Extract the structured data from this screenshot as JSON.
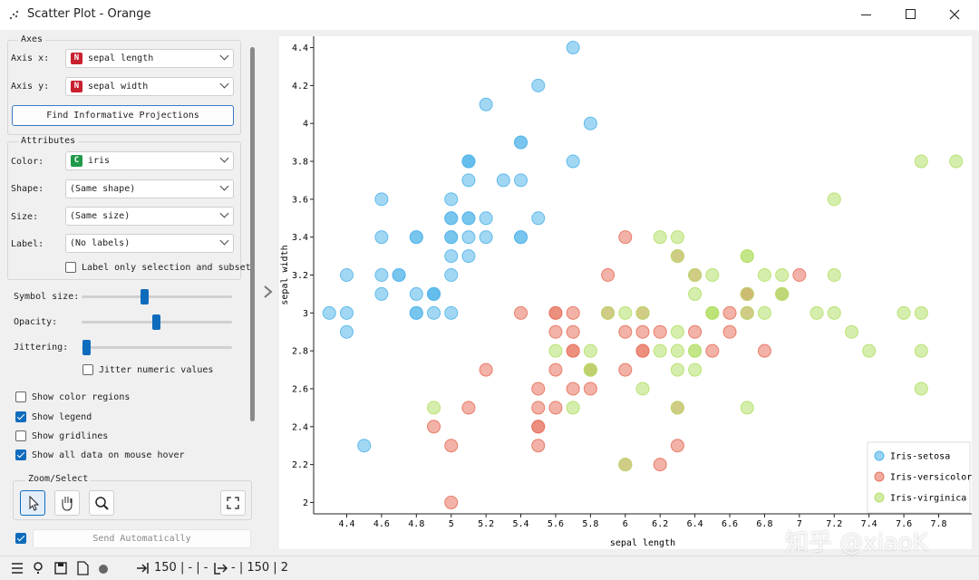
{
  "window": {
    "title": "Scatter Plot - Orange"
  },
  "panel": {
    "axes": {
      "title": "Axes",
      "x_label": "Axis x:",
      "x_badge": "N",
      "x_value": "sepal length",
      "y_label": "Axis y:",
      "y_badge": "N",
      "y_value": "sepal width",
      "button": "Find Informative Projections"
    },
    "attributes": {
      "title": "Attributes",
      "color_label": "Color:",
      "color_badge": "C",
      "color_value": "iris",
      "shape_label": "Shape:",
      "shape_value": "(Same shape)",
      "size_label": "Size:",
      "size_value": "(Same size)",
      "label_label": "Label:",
      "label_value": "(No labels)",
      "label_only": {
        "text": "Label only selection and subset",
        "checked": false
      }
    },
    "sliders": [
      "Symbol size:",
      "Opacity:",
      "Jittering:"
    ],
    "jitter_numeric": {
      "text": "Jitter numeric values",
      "checked": false
    },
    "options": [
      {
        "text": "Show color regions",
        "checked": false
      },
      {
        "text": "Show legend",
        "checked": true
      },
      {
        "text": "Show gridlines",
        "checked": false
      },
      {
        "text": "Show all data on mouse hover",
        "checked": true
      }
    ],
    "zoom_select": "Zoom/Select",
    "send": {
      "text": "Send Automatically",
      "checked": true
    }
  },
  "status": {
    "input": "150 | - | -",
    "output": "- | 150 | 2"
  },
  "watermark": "知乎 @xiaoK",
  "chart_data": {
    "type": "scatter",
    "x_label": "sepal length",
    "y_label": "sepal width",
    "xlim": [
      4.21,
      7.99
    ],
    "ylim": [
      1.94,
      4.46
    ],
    "xticks": [
      4.4,
      4.6,
      4.8,
      5,
      5.2,
      5.4,
      5.6,
      5.8,
      6,
      6.2,
      6.4,
      6.6,
      6.8,
      7,
      7.2,
      7.4,
      7.6,
      7.8
    ],
    "yticks": [
      2,
      2.2,
      2.4,
      2.6,
      2.8,
      3,
      3.2,
      3.4,
      3.6,
      3.8,
      4,
      4.2,
      4.4
    ],
    "grid": false,
    "legend": "bottom-right",
    "series": [
      {
        "name": "Iris-setosa",
        "color": "#55b6ea",
        "x": [
          5.1,
          4.9,
          4.7,
          4.6,
          5.0,
          5.4,
          4.6,
          5.0,
          4.4,
          4.9,
          5.4,
          4.8,
          4.8,
          4.3,
          5.8,
          5.7,
          5.4,
          5.1,
          5.7,
          5.1,
          5.4,
          5.1,
          4.6,
          5.1,
          4.8,
          5.0,
          5.0,
          5.2,
          5.2,
          4.7,
          4.8,
          5.4,
          5.2,
          5.5,
          4.9,
          5.0,
          5.5,
          4.9,
          4.4,
          5.1,
          5.0,
          4.5,
          4.4,
          5.0,
          5.1,
          4.8,
          5.1,
          4.6,
          5.3,
          5.0
        ],
        "y": [
          3.5,
          3.0,
          3.2,
          3.1,
          3.6,
          3.9,
          3.4,
          3.4,
          2.9,
          3.1,
          3.7,
          3.4,
          3.0,
          3.0,
          4.0,
          4.4,
          3.9,
          3.5,
          3.8,
          3.8,
          3.4,
          3.7,
          3.6,
          3.3,
          3.4,
          3.0,
          3.4,
          3.5,
          3.4,
          3.2,
          3.1,
          3.4,
          4.1,
          4.2,
          3.1,
          3.2,
          3.5,
          3.1,
          3.0,
          3.4,
          3.5,
          2.3,
          3.2,
          3.5,
          3.8,
          3.0,
          3.8,
          3.2,
          3.7,
          3.3
        ]
      },
      {
        "name": "Iris-versicolor",
        "color": "#e8735f",
        "x": [
          7.0,
          6.4,
          6.9,
          5.5,
          6.5,
          5.7,
          6.3,
          4.9,
          6.6,
          5.2,
          5.0,
          5.9,
          6.0,
          6.1,
          5.6,
          6.7,
          5.6,
          5.8,
          6.2,
          5.6,
          5.9,
          6.1,
          6.3,
          6.1,
          6.4,
          6.6,
          6.8,
          6.7,
          6.0,
          5.7,
          5.5,
          5.5,
          5.8,
          6.0,
          5.4,
          6.0,
          6.7,
          6.3,
          5.6,
          5.5,
          5.5,
          6.1,
          5.8,
          5.0,
          5.6,
          5.7,
          5.7,
          6.2,
          5.1,
          5.7
        ],
        "y": [
          3.2,
          3.2,
          3.1,
          2.3,
          2.8,
          2.8,
          3.3,
          2.4,
          2.9,
          2.7,
          2.0,
          3.0,
          2.2,
          2.9,
          2.9,
          3.1,
          3.0,
          2.7,
          2.2,
          2.5,
          3.2,
          2.8,
          2.5,
          2.8,
          2.9,
          3.0,
          2.8,
          3.0,
          2.9,
          2.6,
          2.4,
          2.4,
          2.7,
          2.7,
          3.0,
          3.4,
          3.1,
          2.3,
          3.0,
          2.5,
          2.6,
          3.0,
          2.6,
          2.3,
          2.7,
          3.0,
          2.9,
          2.9,
          2.5,
          2.8
        ]
      },
      {
        "name": "Iris-virginica",
        "color": "#b5e06a",
        "x": [
          6.3,
          5.8,
          7.1,
          6.3,
          6.5,
          7.6,
          4.9,
          7.3,
          6.7,
          7.2,
          6.5,
          6.4,
          6.8,
          5.7,
          5.8,
          6.4,
          6.5,
          7.7,
          7.7,
          6.0,
          6.9,
          5.6,
          7.7,
          6.3,
          6.7,
          7.2,
          6.2,
          6.1,
          6.4,
          7.2,
          7.4,
          7.9,
          6.4,
          6.3,
          6.1,
          7.7,
          6.3,
          6.4,
          6.0,
          6.9,
          6.7,
          6.9,
          5.8,
          6.8,
          6.7,
          6.7,
          6.3,
          6.5,
          6.2,
          5.9
        ],
        "y": [
          3.3,
          2.7,
          3.0,
          2.9,
          3.0,
          3.0,
          2.5,
          2.9,
          2.5,
          3.6,
          3.2,
          2.7,
          3.0,
          2.5,
          2.8,
          3.2,
          3.0,
          3.8,
          2.6,
          2.2,
          3.2,
          2.8,
          2.8,
          2.7,
          3.3,
          3.2,
          2.8,
          3.0,
          2.8,
          3.0,
          2.8,
          3.8,
          2.8,
          2.8,
          2.6,
          3.0,
          3.4,
          3.1,
          3.0,
          3.1,
          3.1,
          3.1,
          2.7,
          3.2,
          3.3,
          3.0,
          2.5,
          3.0,
          3.4,
          3.0
        ]
      }
    ]
  }
}
